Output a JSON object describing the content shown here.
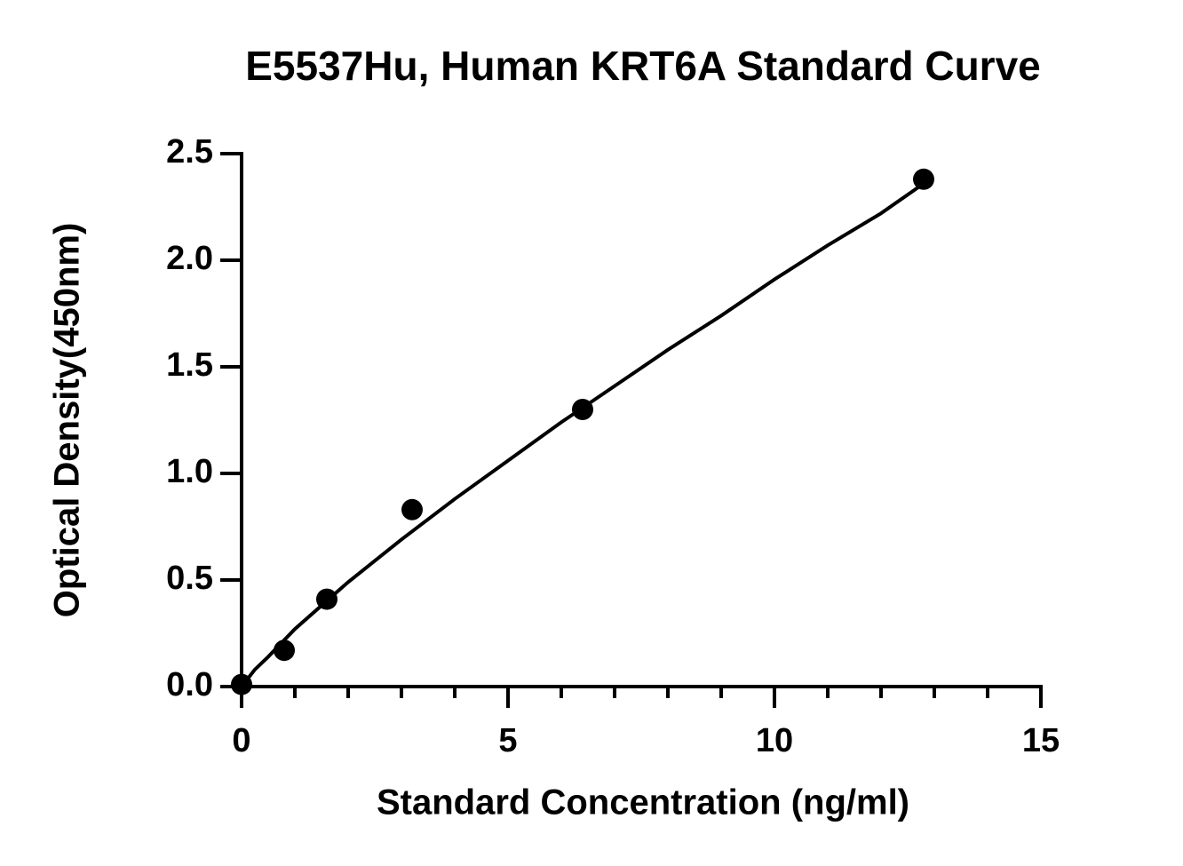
{
  "chart_data": {
    "type": "scatter",
    "title": "E5537Hu, Human KRT6A Standard Curve",
    "x_label": "Standard Concentration (ng/ml)",
    "y_label": "Optical Density(450nm)",
    "series": [
      {
        "color": "#000000",
        "x": [
          0,
          0.8,
          1.6,
          3.2,
          6.4,
          12.8
        ],
        "values": [
          0.01,
          0.17,
          0.41,
          0.83,
          1.3,
          2.38
        ]
      }
    ],
    "curve": {
      "color": "#000000",
      "x": [
        0,
        0.25,
        0.5,
        1,
        2,
        3,
        4,
        5,
        6,
        7,
        8,
        9,
        10,
        11,
        12,
        12.8
      ],
      "values": [
        0,
        0.08,
        0.14,
        0.27,
        0.49,
        0.69,
        0.88,
        1.06,
        1.24,
        1.41,
        1.58,
        1.74,
        1.91,
        2.07,
        2.22,
        2.36
      ]
    },
    "xlim": [
      0,
      15
    ],
    "xticks": [
      0,
      5,
      10,
      15
    ],
    "x_minor_ticks": [
      1,
      2,
      3,
      4,
      6,
      7,
      8,
      9,
      11,
      12,
      13,
      14
    ],
    "ylim": [
      0,
      2.5
    ],
    "yticks": [
      {
        "value": 0,
        "label": "0.0"
      },
      0.5,
      {
        "value": 1,
        "label": "1.0"
      },
      1.5,
      {
        "value": 2,
        "label": "2.0"
      },
      2.5
    ],
    "grid": false
  }
}
